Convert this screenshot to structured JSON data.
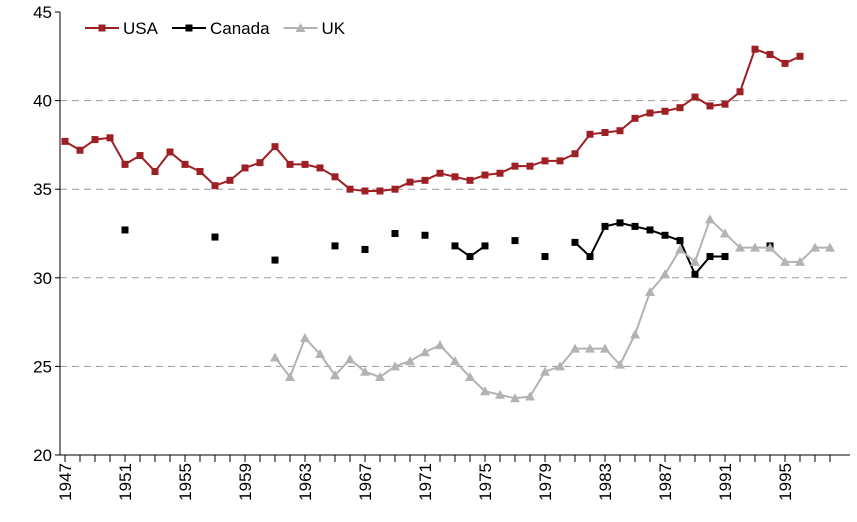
{
  "chart_data": {
    "type": "line",
    "categories": [
      "1947",
      null,
      null,
      null,
      "1951",
      null,
      null,
      null,
      "1955",
      null,
      null,
      null,
      "1959",
      null,
      null,
      null,
      "1963",
      null,
      null,
      null,
      "1967",
      null,
      null,
      null,
      "1971",
      null,
      null,
      null,
      "1975",
      null,
      null,
      null,
      "1979",
      null,
      null,
      null,
      "1983",
      null,
      null,
      null,
      "1987",
      null,
      null,
      null,
      "1991",
      null,
      null,
      null,
      "1995",
      null,
      null,
      null
    ],
    "series": [
      {
        "name": "USA",
        "color": "#9e1f24",
        "marker": "square",
        "values": [
          37.7,
          37.2,
          37.8,
          37.9,
          36.4,
          36.9,
          36.0,
          37.1,
          36.4,
          36.0,
          35.2,
          35.5,
          36.2,
          36.5,
          37.4,
          36.4,
          36.4,
          36.2,
          35.7,
          35.0,
          34.9,
          34.9,
          35.0,
          35.4,
          35.5,
          35.9,
          35.7,
          35.5,
          35.8,
          35.9,
          36.3,
          36.3,
          36.6,
          36.6,
          37.0,
          38.1,
          38.2,
          38.3,
          39.0,
          39.3,
          39.4,
          39.6,
          40.2,
          39.7,
          39.8,
          40.5,
          42.9,
          42.6,
          42.1,
          42.5,
          null,
          null
        ]
      },
      {
        "name": "Canada",
        "color": "#000000",
        "marker": "square",
        "values": [
          null,
          null,
          null,
          null,
          32.7,
          null,
          null,
          null,
          null,
          null,
          32.3,
          null,
          null,
          null,
          31.0,
          null,
          null,
          null,
          31.8,
          null,
          31.6,
          null,
          32.5,
          null,
          32.4,
          null,
          31.8,
          31.2,
          31.8,
          null,
          32.1,
          null,
          31.2,
          null,
          32.0,
          31.2,
          32.9,
          33.1,
          32.9,
          32.7,
          32.4,
          32.1,
          30.2,
          31.2,
          31.2,
          null,
          null,
          31.8,
          null,
          null,
          null,
          null
        ]
      },
      {
        "name": "UK",
        "color": "#b3b3b3",
        "marker": "triangle",
        "values": [
          null,
          null,
          null,
          null,
          null,
          null,
          null,
          null,
          null,
          null,
          null,
          null,
          null,
          null,
          25.5,
          24.4,
          26.6,
          25.7,
          24.5,
          25.4,
          24.7,
          24.4,
          25.0,
          25.3,
          25.8,
          26.2,
          25.3,
          24.4,
          23.6,
          23.4,
          23.2,
          23.3,
          24.7,
          25.0,
          26.0,
          26.0,
          26.0,
          25.1,
          26.8,
          29.2,
          30.2,
          31.6,
          30.9,
          33.3,
          32.5,
          31.7,
          31.7,
          31.7,
          30.9,
          30.9,
          31.7,
          31.7
        ]
      }
    ],
    "ylim": [
      20,
      45
    ],
    "yticks": [
      20,
      25,
      30,
      35,
      40,
      45
    ],
    "grid": true,
    "legend": "top-left"
  }
}
